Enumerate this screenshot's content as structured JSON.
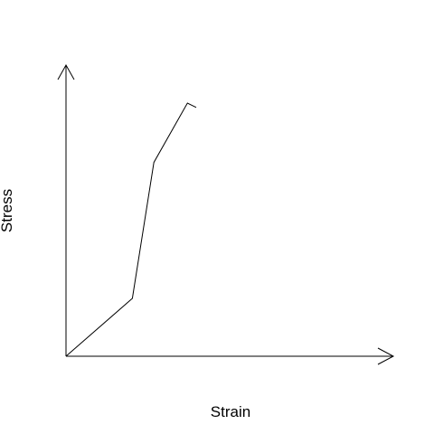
{
  "chart_data": {
    "type": "line",
    "title": "",
    "xlabel": "Strain",
    "ylabel": "Stress",
    "ticks": false,
    "grid": false,
    "xlim": [
      0,
      10
    ],
    "ylim": [
      0,
      10
    ],
    "series": [
      {
        "x": [
          0.0,
          2.04,
          2.7,
          3.73,
          4.0
        ],
        "y": [
          0.0,
          2.0,
          6.7,
          8.75,
          8.6
        ]
      }
    ]
  }
}
